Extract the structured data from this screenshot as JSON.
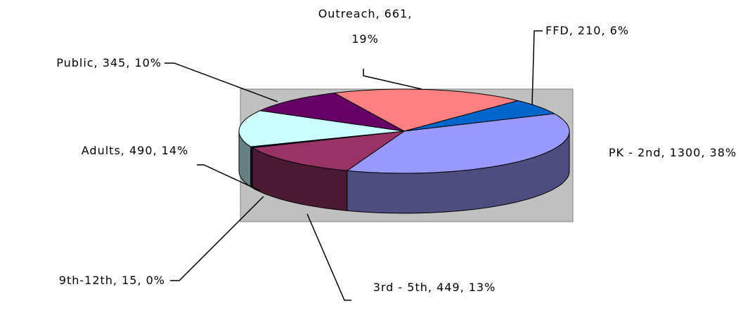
{
  "chart_data": {
    "type": "pie3d",
    "categories": [
      "Outreach",
      "FFD",
      "PK - 2nd",
      "3rd - 5th",
      "9th-12th",
      "Adults",
      "Public"
    ],
    "values": [
      661,
      210,
      1300,
      449,
      15,
      490,
      345
    ],
    "value_labels": [
      "Outreach, 661, 19%",
      "FFD, 210, 6%",
      "PK - 2nd, 1300, 38%",
      "3rd - 5th, 449, 13%",
      "9th-12th, 15, 0%",
      "Adults, 490, 14%",
      "Public, 345, 10%"
    ],
    "colors": [
      "#ff8080",
      "#0066cc",
      "#9999ff",
      "#993366",
      "#1a1a40",
      "#ccffff",
      "#660066"
    ]
  }
}
